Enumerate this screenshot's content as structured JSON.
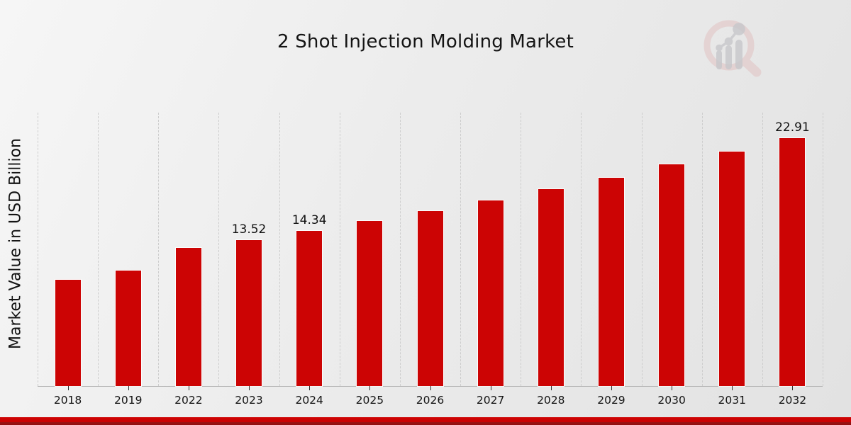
{
  "chart_data": {
    "type": "bar",
    "title": "2 Shot Injection Molding Market",
    "xlabel": "",
    "ylabel": "Market Value in USD Billion",
    "categories": [
      "2018",
      "2019",
      "2022",
      "2023",
      "2024",
      "2025",
      "2026",
      "2027",
      "2028",
      "2029",
      "2030",
      "2031",
      "2032"
    ],
    "values": [
      9.8,
      10.7,
      12.8,
      13.52,
      14.34,
      15.3,
      16.2,
      17.2,
      18.2,
      19.3,
      20.5,
      21.7,
      22.91
    ],
    "bar_labels": [
      "",
      "",
      "",
      "13.52",
      "14.34",
      "",
      "",
      "",
      "",
      "",
      "",
      "",
      "22.91"
    ],
    "bar_color": "#cc0404",
    "ylim": [
      0,
      25.3
    ],
    "grid": "vertical-dashed",
    "legend": "none"
  },
  "footer": {
    "accent_color": "#c90303"
  },
  "logo": {
    "name": "magnifier-bar-chart-watermark",
    "ring_color": "#e2c6c6",
    "glyph_color": "#c7c7cb"
  }
}
